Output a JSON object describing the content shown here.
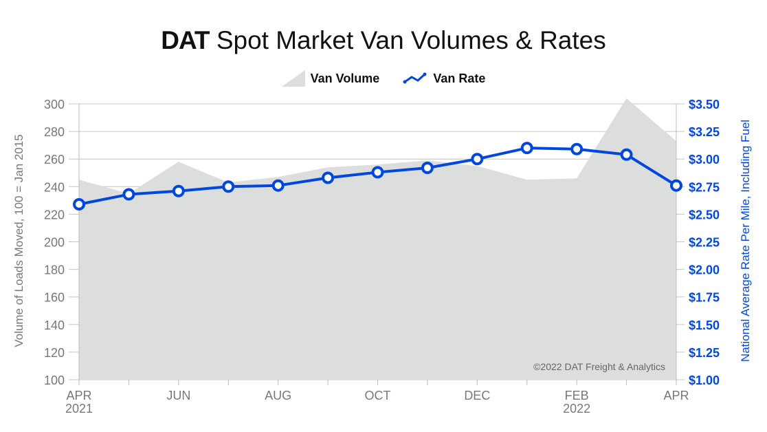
{
  "title": {
    "brand": "DAT",
    "text": "Spot Market Van Volumes & Rates"
  },
  "copyright": "©2022 DAT Freight & Analytics",
  "colors": {
    "volume": "#dcdddd",
    "rate": "#0047e0",
    "left_axis": "#777777",
    "grid": "#c4c4c4"
  },
  "chart_data": {
    "type": "line",
    "title": "DAT Spot Market Van Volumes & Rates",
    "legend": [
      "Van Volume",
      "Van Rate"
    ],
    "legend_placement": "top-center",
    "x": [
      "2021-04",
      "2021-05",
      "2021-06",
      "2021-07",
      "2021-08",
      "2021-09",
      "2021-10",
      "2021-11",
      "2021-12",
      "2022-01",
      "2022-02",
      "2022-03",
      "2022-04"
    ],
    "x_tick_labels": [
      {
        "index": 0,
        "label": "APR",
        "sub": "2021"
      },
      {
        "index": 2,
        "label": "JUN",
        "sub": ""
      },
      {
        "index": 4,
        "label": "AUG",
        "sub": ""
      },
      {
        "index": 6,
        "label": "OCT",
        "sub": ""
      },
      {
        "index": 8,
        "label": "DEC",
        "sub": ""
      },
      {
        "index": 10,
        "label": "FEB",
        "sub": "2022"
      },
      {
        "index": 12,
        "label": "APR",
        "sub": ""
      }
    ],
    "ylabel_left": "Volume of Loads Moved, 100 = Jan 2015",
    "ylabel_right": "National Average Rate Per Mile, Including Fuel",
    "ylim_left": [
      100,
      300
    ],
    "yticks_left": [
      "100",
      "120",
      "140",
      "160",
      "180",
      "200",
      "220",
      "240",
      "260",
      "280",
      "300"
    ],
    "ylim_right": [
      1.0,
      3.5
    ],
    "yticks_right": [
      "$1.00",
      "$1.25",
      "$1.50",
      "$1.75",
      "$2.00",
      "$2.25",
      "$2.50",
      "$2.75",
      "$3.00",
      "$3.25",
      "$3.50"
    ],
    "grid": true,
    "series": [
      {
        "name": "Van Volume",
        "type": "area",
        "axis": "left",
        "values": [
          245,
          235,
          258,
          243,
          247,
          254,
          256,
          259,
          255,
          245,
          246,
          304,
          273
        ]
      },
      {
        "name": "Van Rate",
        "type": "line",
        "axis": "right",
        "values": [
          2.59,
          2.68,
          2.71,
          2.75,
          2.76,
          2.83,
          2.88,
          2.92,
          3.0,
          3.1,
          3.09,
          3.04,
          2.76
        ]
      }
    ]
  }
}
